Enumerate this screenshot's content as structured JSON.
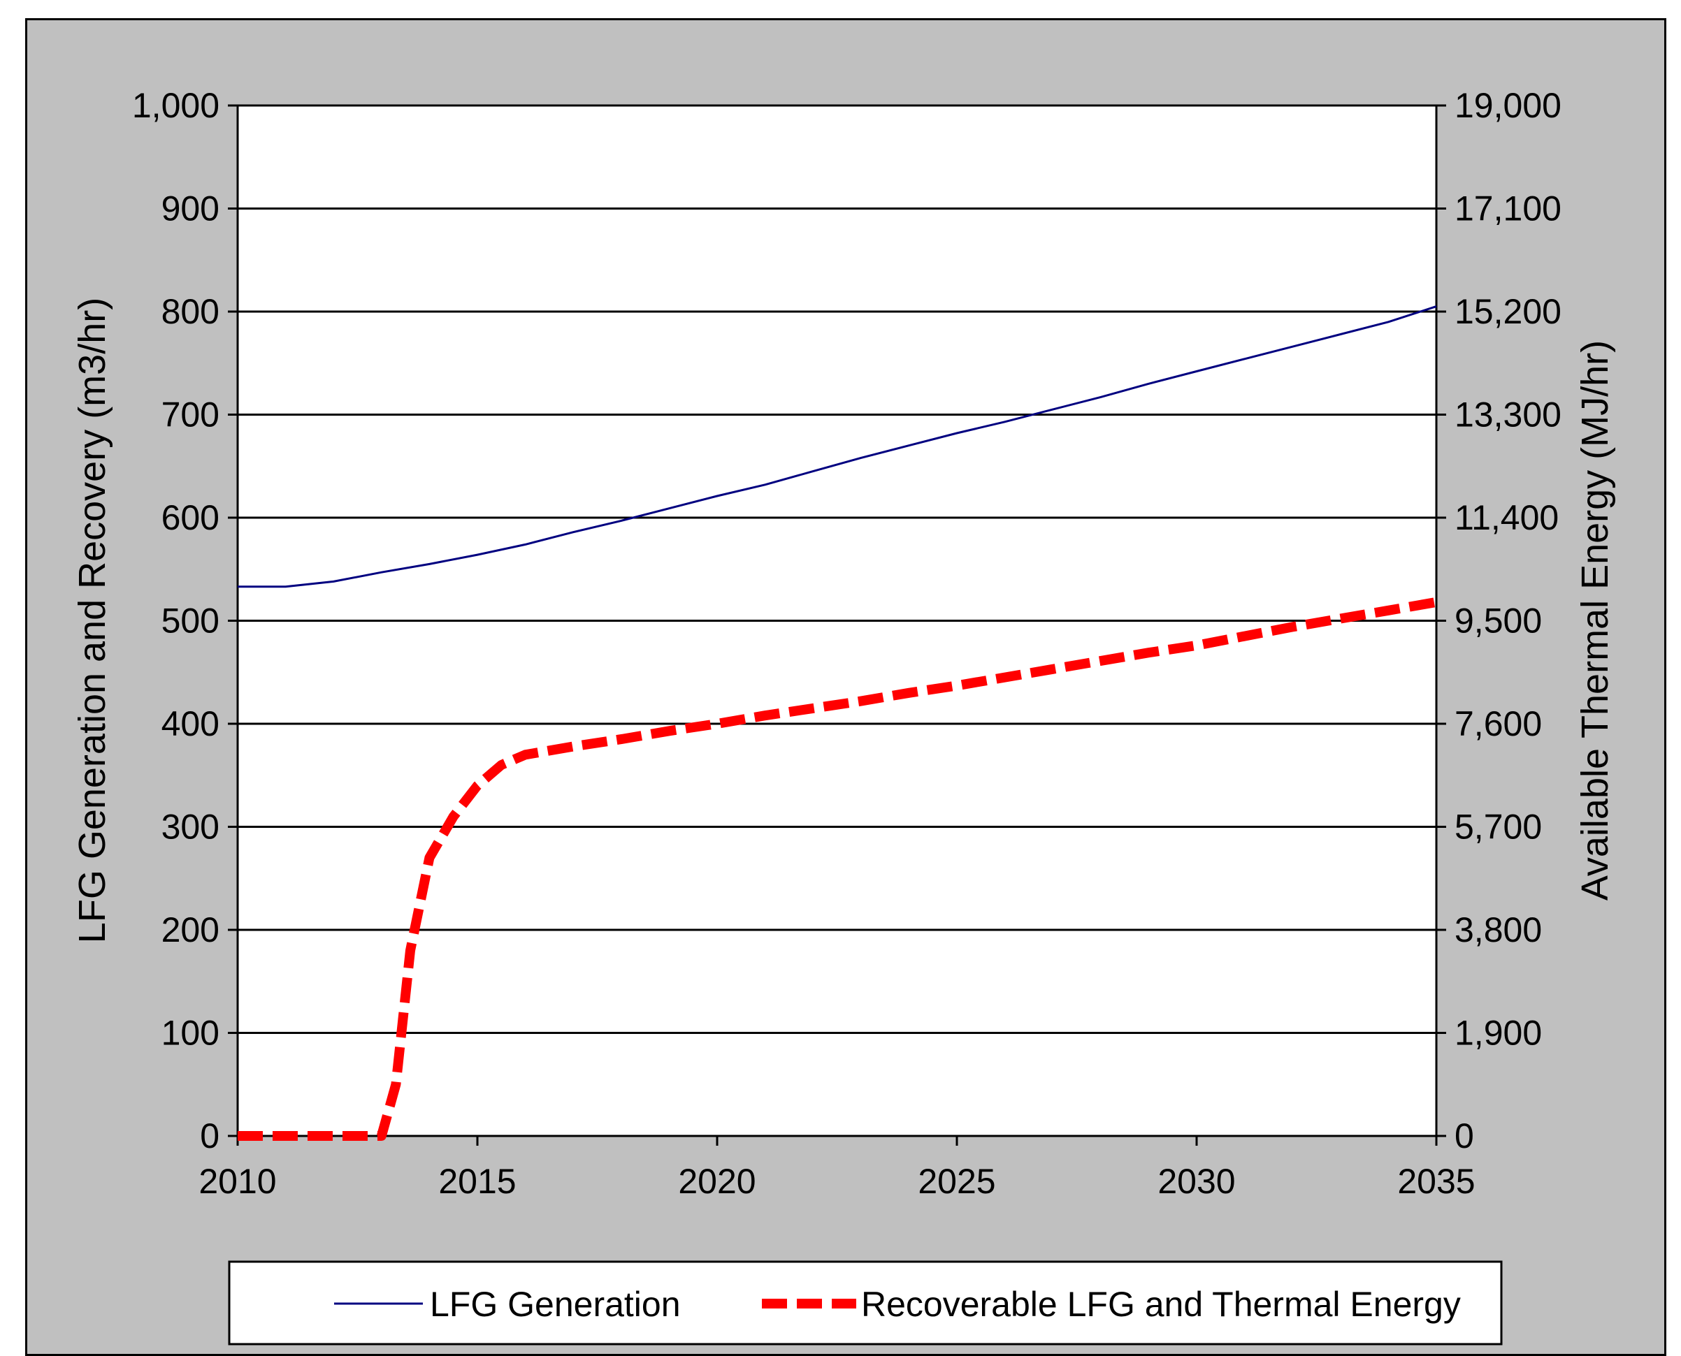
{
  "chart_data": {
    "type": "line",
    "title": "",
    "xlabel": "",
    "ylabel": "LFG  Generation and Recovery (m3/hr)",
    "y2label": "Available Thermal Energy (MJ/hr)",
    "xlim": [
      2010,
      2035
    ],
    "ylim": [
      0,
      1000
    ],
    "y2lim": [
      0,
      19000
    ],
    "x_ticks": [
      "2010",
      "2015",
      "2020",
      "2025",
      "2030",
      "2035"
    ],
    "y_ticks": [
      "0",
      "100",
      "200",
      "300",
      "400",
      "500",
      "600",
      "700",
      "800",
      "900",
      "1,000"
    ],
    "y2_ticks": [
      "0",
      "1,900",
      "3,800",
      "5,700",
      "7,600",
      "9,500",
      "11,400",
      "13,300",
      "15,200",
      "17,100",
      "19,000"
    ],
    "grid": true,
    "legend_position": "bottom",
    "series": [
      {
        "name": "LFG Generation",
        "color": "#000080",
        "style": "solid",
        "x": [
          2010,
          2011,
          2012,
          2013,
          2014,
          2015,
          2016,
          2017,
          2018,
          2019,
          2020,
          2021,
          2022,
          2023,
          2024,
          2025,
          2026,
          2027,
          2028,
          2029,
          2030,
          2031,
          2032,
          2033,
          2034,
          2035
        ],
        "y": [
          533,
          533,
          538,
          547,
          555,
          564,
          574,
          586,
          597,
          609,
          621,
          632,
          645,
          658,
          670,
          682,
          693,
          705,
          717,
          730,
          742,
          754,
          766,
          778,
          790,
          805
        ]
      },
      {
        "name": "Recoverable LFG and Thermal Energy",
        "color": "#ff0000",
        "style": "dashed",
        "x": [
          2010,
          2011,
          2012,
          2013,
          2013.3,
          2013.6,
          2014,
          2014.5,
          2015,
          2015.5,
          2016,
          2017,
          2018,
          2019,
          2020,
          2021,
          2022,
          2023,
          2024,
          2025,
          2026,
          2027,
          2028,
          2029,
          2030,
          2031,
          2032,
          2033,
          2034,
          2035
        ],
        "y": [
          0,
          0,
          0,
          0,
          50,
          180,
          270,
          310,
          340,
          360,
          370,
          378,
          385,
          393,
          400,
          408,
          415,
          422,
          430,
          437,
          445,
          453,
          461,
          469,
          476,
          485,
          494,
          502,
          510,
          518
        ]
      }
    ]
  }
}
